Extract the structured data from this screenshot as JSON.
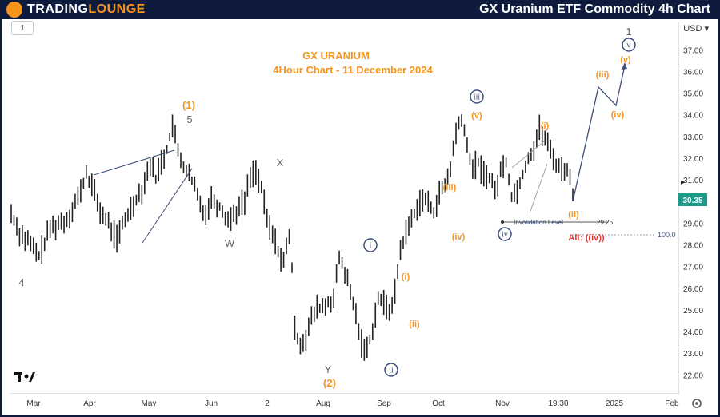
{
  "header": {
    "brand_part1": "TRADING",
    "brand_part2": "LOUNGE",
    "title": "GX Uranium ETF Commodity 4h Chart"
  },
  "toolbar": {
    "interval": "1",
    "currency": "USD"
  },
  "colors": {
    "primary": "#0e1b3d",
    "accent": "#f7941d",
    "wave_blue": "#3b4d7a",
    "wave_gray": "#666666",
    "alert_red": "#e53935",
    "price_label": "#1a9b8a"
  },
  "chart_data": {
    "type": "line",
    "title": "GX URANIUM",
    "subtitle": "4Hour Chart - 11 December 2024",
    "x_ticks": [
      "Mar",
      "Apr",
      "May",
      "Jun",
      "2",
      "Aug",
      "Sep",
      "Oct",
      "Nov",
      "19:30",
      "2025",
      "Feb"
    ],
    "y_ticks": [
      "37.00",
      "36.00",
      "35.00",
      "34.00",
      "33.00",
      "32.00",
      "31.00",
      "30.00",
      "29.00",
      "28.00",
      "27.00",
      "26.00",
      "25.00",
      "24.00",
      "23.00",
      "22.00"
    ],
    "ylim": [
      21.2,
      38.3
    ],
    "grid": false,
    "last_price": "30.35",
    "invalidation": {
      "label": "Invalidation Level",
      "value": "29.25"
    },
    "alt_level": "100.0",
    "series": [
      {
        "points": [
          [
            0,
            29.5
          ],
          [
            3,
            28.6
          ],
          [
            6,
            28.2
          ],
          [
            10,
            27.5
          ],
          [
            14,
            28.8
          ],
          [
            20,
            29.2
          ],
          [
            25,
            30.5
          ],
          [
            27,
            31.3
          ],
          [
            29,
            30.8
          ],
          [
            32,
            29.6
          ],
          [
            35,
            29.0
          ],
          [
            38,
            28.3
          ],
          [
            41,
            29.2
          ],
          [
            44,
            30.0
          ],
          [
            47,
            30.6
          ],
          [
            50,
            31.8
          ],
          [
            52,
            31.1
          ],
          [
            54,
            31.9
          ],
          [
            56,
            32.4
          ],
          [
            58,
            33.6
          ],
          [
            60,
            32.3
          ],
          [
            62,
            31.7
          ],
          [
            64,
            31.2
          ],
          [
            66,
            30.7
          ],
          [
            68,
            29.9
          ],
          [
            70,
            29.5
          ],
          [
            72,
            30.2
          ],
          [
            75,
            29.8
          ],
          [
            78,
            29.2
          ],
          [
            81,
            29.6
          ],
          [
            84,
            30.1
          ],
          [
            86,
            31.2
          ],
          [
            88,
            31.5
          ],
          [
            90,
            30.6
          ],
          [
            92,
            29.2
          ],
          [
            94,
            28.5
          ],
          [
            96,
            27.8
          ],
          [
            98,
            27.2
          ],
          [
            100,
            28.5
          ],
          [
            101,
            26.9
          ],
          [
            102,
            24.1
          ],
          [
            104,
            23.5
          ],
          [
            106,
            23.8
          ],
          [
            108,
            24.6
          ],
          [
            110,
            25.1
          ],
          [
            113,
            25.2
          ],
          [
            116,
            25.6
          ],
          [
            118,
            27.4
          ],
          [
            120,
            26.8
          ],
          [
            122,
            25.8
          ],
          [
            124,
            24.8
          ],
          [
            126,
            23.5
          ],
          [
            128,
            23.2
          ],
          [
            130,
            24.2
          ],
          [
            132,
            25.6
          ],
          [
            134,
            25.3
          ],
          [
            136,
            25.0
          ],
          [
            138,
            25.8
          ],
          [
            140,
            27.8
          ],
          [
            142,
            28.6
          ],
          [
            144,
            29.2
          ],
          [
            146,
            29.8
          ],
          [
            148,
            30.2
          ],
          [
            150,
            29.9
          ],
          [
            152,
            29.6
          ],
          [
            154,
            30.4
          ],
          [
            156,
            30.7
          ],
          [
            158,
            31.6
          ],
          [
            160,
            33.2
          ],
          [
            162,
            33.9
          ],
          [
            164,
            32.5
          ],
          [
            166,
            31.6
          ],
          [
            168,
            31.8
          ],
          [
            170,
            31.3
          ],
          [
            172,
            31.2
          ],
          [
            174,
            30.5
          ],
          [
            176,
            31.4
          ],
          [
            178,
            31.9
          ],
          [
            180,
            30.3
          ],
          [
            182,
            30.6
          ],
          [
            184,
            31.3
          ],
          [
            186,
            32.1
          ],
          [
            188,
            32.5
          ],
          [
            190,
            33.4
          ],
          [
            192,
            32.9
          ],
          [
            194,
            32.4
          ],
          [
            196,
            31.8
          ],
          [
            198,
            31.5
          ],
          [
            200,
            31.6
          ],
          [
            202,
            30.35
          ]
        ]
      }
    ],
    "waves": [
      {
        "label": "4",
        "kind": "gray-num"
      },
      {
        "label": "W",
        "kind": "gray-num"
      },
      {
        "label": "5",
        "kind": "gray-num"
      },
      {
        "label": "(1)",
        "kind": "orange"
      },
      {
        "label": "X",
        "kind": "gray-num"
      },
      {
        "label": "Y",
        "kind": "gray-num"
      },
      {
        "label": "(2)",
        "kind": "orange"
      },
      {
        "label": "i",
        "kind": "blue-circle"
      },
      {
        "label": "ii",
        "kind": "blue-circle"
      },
      {
        "label": "iii",
        "kind": "blue-circle"
      },
      {
        "label": "iv",
        "kind": "blue-circle"
      },
      {
        "label": "v",
        "kind": "blue-circle"
      },
      {
        "label": "1",
        "kind": "gray-num"
      },
      {
        "label": "(i)",
        "kind": "orange"
      },
      {
        "label": "(ii)",
        "kind": "orange"
      },
      {
        "label": "(iii)",
        "kind": "orange"
      },
      {
        "label": "(iv)",
        "kind": "orange"
      },
      {
        "label": "(i)",
        "kind": "orange"
      },
      {
        "label": "(ii)",
        "kind": "orange"
      },
      {
        "label": "(iii)",
        "kind": "orange"
      },
      {
        "label": "(iv)",
        "kind": "orange"
      },
      {
        "label": "(v)",
        "kind": "orange"
      },
      {
        "label": "(v)",
        "kind": "orange"
      },
      {
        "label": "Alt: ((iv))",
        "kind": "red"
      }
    ]
  }
}
